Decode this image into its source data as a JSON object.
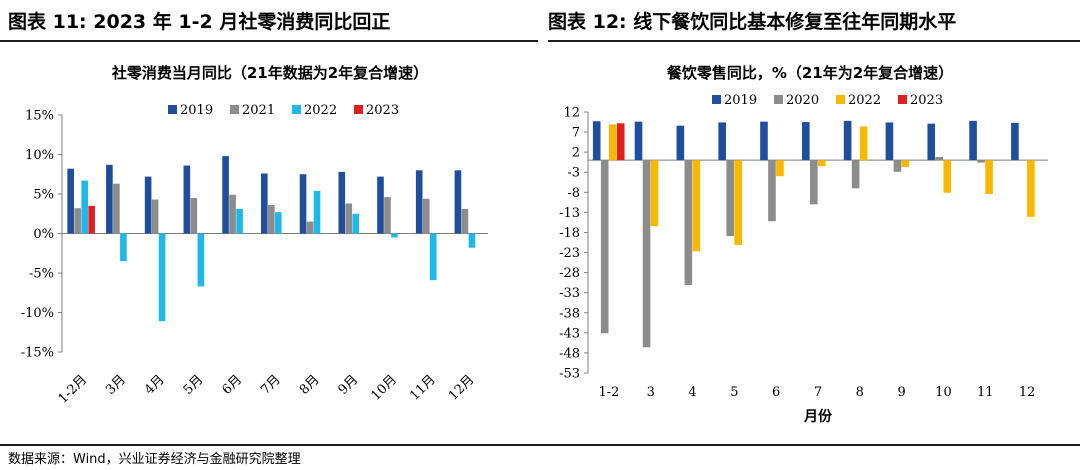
{
  "header": {
    "left_title": "图表 11:  2023 年 1-2 月社零消费同比回正",
    "right_title": "图表 12:  线下餐饮同比基本修复至往年同期水平"
  },
  "footer": {
    "source": "数据来源：Wind，兴业证券经济与金融研究院整理"
  },
  "chart_data": [
    {
      "type": "bar",
      "title": "社零消费当月同比（21年数据为2年复合增速）",
      "categories": [
        "1-2月",
        "3月",
        "4月",
        "5月",
        "6月",
        "7月",
        "8月",
        "9月",
        "10月",
        "11月",
        "12月"
      ],
      "series": [
        {
          "name": "2019",
          "color": "#1f4e9c",
          "values": [
            8.2,
            8.7,
            7.2,
            8.6,
            9.8,
            7.6,
            7.5,
            7.8,
            7.2,
            8.0,
            8.0
          ]
        },
        {
          "name": "2021",
          "color": "#8c8c8c",
          "values": [
            3.2,
            6.3,
            4.3,
            4.5,
            4.9,
            3.6,
            1.5,
            3.8,
            4.6,
            4.4,
            3.1
          ]
        },
        {
          "name": "2022",
          "color": "#1fb8e8",
          "values": [
            6.7,
            -3.5,
            -11.1,
            -6.7,
            3.1,
            2.7,
            5.4,
            2.5,
            -0.5,
            -5.9,
            -1.8
          ]
        },
        {
          "name": "2023",
          "color": "#e02020",
          "values": [
            3.5,
            null,
            null,
            null,
            null,
            null,
            null,
            null,
            null,
            null,
            null
          ]
        }
      ],
      "ylim": [
        -15,
        15
      ],
      "yticks": [
        15,
        10,
        5,
        0,
        -5,
        -10,
        -15
      ],
      "ytick_labels": [
        "15%",
        "10%",
        "5%",
        "0%",
        "-5%",
        "-10%",
        "-15%"
      ],
      "xlabel": "",
      "ylabel": "",
      "legend": "top-center",
      "grid": false
    },
    {
      "type": "bar",
      "title": "餐饮零售同比，%（21年为2年复合增速）",
      "categories": [
        "1-2",
        "3",
        "4",
        "5",
        "6",
        "7",
        "8",
        "9",
        "10",
        "11",
        "12"
      ],
      "series": [
        {
          "name": "2019",
          "color": "#1f4e9c",
          "values": [
            9.7,
            9.6,
            8.6,
            9.4,
            9.6,
            9.5,
            9.8,
            9.4,
            9.1,
            9.8,
            9.3
          ]
        },
        {
          "name": "2020",
          "color": "#8c8c8c",
          "values": [
            -43.1,
            -46.6,
            -31.1,
            -18.9,
            -15.2,
            -11.0,
            -7.0,
            -2.9,
            0.8,
            -0.6,
            null
          ]
        },
        {
          "name": "2022",
          "color": "#f6b800",
          "values": [
            8.9,
            -16.4,
            -22.7,
            -21.1,
            -4.0,
            -1.5,
            8.4,
            -1.7,
            -8.1,
            -8.4,
            -14.1
          ]
        },
        {
          "name": "2023",
          "color": "#e02020",
          "values": [
            9.2,
            null,
            null,
            null,
            null,
            null,
            null,
            null,
            null,
            null,
            null
          ]
        }
      ],
      "ylim": [
        -53,
        12
      ],
      "yticks": [
        12,
        7,
        2,
        -3,
        -8,
        -13,
        -18,
        -23,
        -28,
        -33,
        -38,
        -43,
        -48,
        -53
      ],
      "xlabel": "月份",
      "ylabel": "",
      "legend": "top-center",
      "grid": false
    }
  ]
}
